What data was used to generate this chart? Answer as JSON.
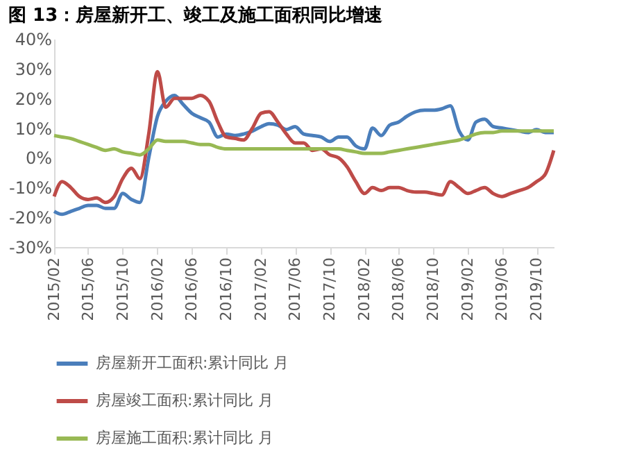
{
  "chart_data": {
    "type": "line",
    "title": "图 13：房屋新开工、竣工及施工面积同比增速",
    "x": [
      "2015-02",
      "2015-03",
      "2015-04",
      "2015-05",
      "2015-06",
      "2015-07",
      "2015-08",
      "2015-09",
      "2015-10",
      "2015-11",
      "2015-12",
      "2016-01",
      "2016-02",
      "2016-03",
      "2016-04",
      "2016-05",
      "2016-06",
      "2016-07",
      "2016-08",
      "2016-09",
      "2016-10",
      "2016-11",
      "2016-12",
      "2017-01",
      "2017-02",
      "2017-03",
      "2017-04",
      "2017-05",
      "2017-06",
      "2017-07",
      "2017-08",
      "2017-09",
      "2017-10",
      "2017-11",
      "2017-12",
      "2018-01",
      "2018-02",
      "2018-03",
      "2018-04",
      "2018-05",
      "2018-06",
      "2018-07",
      "2018-08",
      "2018-09",
      "2018-10",
      "2018-11",
      "2018-12",
      "2019-01",
      "2019-02",
      "2019-03",
      "2019-04",
      "2019-05",
      "2019-06",
      "2019-07",
      "2019-08",
      "2019-09",
      "2019-10",
      "2019-11",
      "2019-12"
    ],
    "series": [
      {
        "name": "房屋新开工面积:累计同比 月",
        "color": "#4a7ebb",
        "values": [
          -18,
          -19,
          -18,
          -17,
          -16,
          -16,
          -17,
          -17,
          -12,
          -14,
          -15,
          0,
          14,
          19,
          21,
          18,
          15,
          13.5,
          12,
          7,
          8,
          7.5,
          8,
          9,
          10.5,
          11.5,
          11,
          9.5,
          10.5,
          8,
          7.5,
          7,
          5.5,
          7,
          7,
          4,
          3,
          10,
          7.5,
          11,
          12,
          14,
          15.5,
          16,
          16,
          16.5,
          17.5,
          9,
          6,
          12,
          13,
          10.5,
          10,
          9.5,
          9,
          8.5,
          9.5,
          8.5,
          8.5
        ]
      },
      {
        "name": "房屋竣工面积:累计同比 月",
        "color": "#be4b48",
        "values": [
          -13,
          -8,
          -10,
          -13,
          -14,
          -13.5,
          -15,
          -13,
          -7,
          -3.5,
          -7,
          8,
          29,
          17,
          20,
          20,
          20,
          21,
          19,
          12,
          7,
          6.5,
          6,
          10,
          15,
          15.5,
          12,
          8,
          5,
          5,
          2.5,
          3,
          1,
          0,
          -3,
          -8,
          -12,
          -10,
          -11,
          -10,
          -10,
          -11,
          -11.5,
          -11.5,
          -12,
          -12.5,
          -8,
          -10,
          -12,
          -11,
          -10,
          -12,
          -13,
          -12,
          -11,
          -10,
          -8,
          -5.5,
          2.5
        ]
      },
      {
        "name": "房屋施工面积:累计同比 月",
        "color": "#98b954",
        "values": [
          7.5,
          7,
          6.5,
          5.5,
          4.5,
          3.5,
          2.5,
          3,
          2,
          1.5,
          1,
          3,
          6,
          5.5,
          5.5,
          5.5,
          5,
          4.5,
          4.5,
          3.5,
          3,
          3,
          3,
          3,
          3,
          3,
          3,
          3,
          3,
          3,
          3,
          3,
          3,
          3,
          2.5,
          2,
          1.5,
          1.5,
          1.5,
          2,
          2.5,
          3,
          3.5,
          4,
          4.5,
          5,
          5.5,
          6,
          7,
          8,
          8.5,
          8.5,
          9,
          9,
          9,
          9,
          9,
          9,
          9
        ]
      }
    ],
    "xlim": [
      "2015-02",
      "2019-12"
    ],
    "xticks": [
      {
        "value": "2015-02",
        "label": "2015/02"
      },
      {
        "value": "2015-06",
        "label": "2015/06"
      },
      {
        "value": "2015-10",
        "label": "2015/10"
      },
      {
        "value": "2016-02",
        "label": "2016/02"
      },
      {
        "value": "2016-06",
        "label": "2016/06"
      },
      {
        "value": "2016-10",
        "label": "2016/10"
      },
      {
        "value": "2017-02",
        "label": "2017/02"
      },
      {
        "value": "2017-06",
        "label": "2017/06"
      },
      {
        "value": "2017-10",
        "label": "2017/10"
      },
      {
        "value": "2018-02",
        "label": "2018/02"
      },
      {
        "value": "2018-06",
        "label": "2018/06"
      },
      {
        "value": "2018-10",
        "label": "2018/10"
      },
      {
        "value": "2019-02",
        "label": "2019/02"
      },
      {
        "value": "2019-06",
        "label": "2019/06"
      },
      {
        "value": "2019-10",
        "label": "2019/10"
      }
    ],
    "ylim": [
      -30,
      40
    ],
    "yticks": [
      {
        "value": -30,
        "label": "-30%"
      },
      {
        "value": -20,
        "label": "-20%"
      },
      {
        "value": -10,
        "label": "-10%"
      },
      {
        "value": 0,
        "label": "0%"
      },
      {
        "value": 10,
        "label": "10%"
      },
      {
        "value": 20,
        "label": "20%"
      },
      {
        "value": 30,
        "label": "30%"
      },
      {
        "value": 40,
        "label": "40%"
      }
    ],
    "grid": false,
    "legend": "bottom"
  }
}
